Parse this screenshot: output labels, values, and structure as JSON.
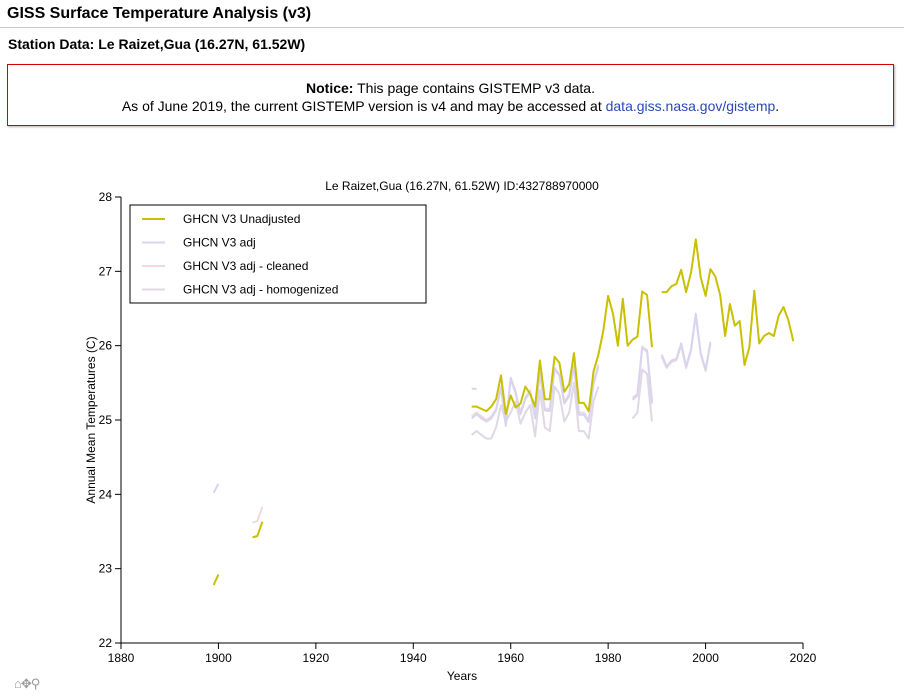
{
  "page": {
    "title": "GISS Surface Temperature Analysis (v3)",
    "station_title": "Station Data: Le Raizet,Gua (16.27N, 61.52W)"
  },
  "notice": {
    "label": "Notice:",
    "line1": " This page contains GISTEMP v3 data.",
    "line2": "As of June 2019, the current GISTEMP version is v4 and may be accessed at ",
    "link_text": "data.giss.nasa.gov/gistemp",
    "line2_end": "."
  },
  "toolbar": {
    "home_icon": "home-icon",
    "pan_icon": "pan-icon",
    "zoom_icon": "zoom-icon"
  },
  "chart_data": {
    "type": "line",
    "title": "Le Raizet,Gua (16.27N, 61.52W) ID:432788970000",
    "xlabel": "Years",
    "ylabel": "Annual Mean Temperatures (C)",
    "xlim": [
      1880,
      2020
    ],
    "ylim": [
      22,
      28
    ],
    "xticks": [
      1880,
      1900,
      1920,
      1940,
      1960,
      1980,
      2000,
      2020
    ],
    "yticks": [
      22,
      23,
      24,
      25,
      26,
      27,
      28
    ],
    "grid": false,
    "legend_position": "top-left",
    "series": [
      {
        "name": "GHCN V3 Unadjusted",
        "color": "#c8c000",
        "segments": [
          [
            [
              1899,
              22.78
            ],
            [
              1900,
              22.92
            ]
          ],
          [
            [
              1907,
              23.42
            ],
            [
              1908,
              23.44
            ],
            [
              1909,
              23.63
            ]
          ],
          [
            [
              1952,
              25.18
            ],
            [
              1953,
              25.18
            ],
            [
              1954,
              25.15
            ],
            [
              1955,
              25.12
            ],
            [
              1956,
              25.18
            ],
            [
              1957,
              25.28
            ],
            [
              1958,
              25.6
            ],
            [
              1959,
              25.08
            ],
            [
              1960,
              25.33
            ],
            [
              1961,
              25.17
            ],
            [
              1962,
              25.22
            ],
            [
              1963,
              25.45
            ],
            [
              1964,
              25.35
            ],
            [
              1965,
              25.18
            ],
            [
              1966,
              25.8
            ],
            [
              1967,
              25.28
            ],
            [
              1968,
              25.28
            ],
            [
              1969,
              25.85
            ],
            [
              1970,
              25.77
            ],
            [
              1971,
              25.38
            ],
            [
              1972,
              25.48
            ],
            [
              1973,
              25.9
            ],
            [
              1974,
              25.23
            ],
            [
              1975,
              25.23
            ],
            [
              1976,
              25.12
            ],
            [
              1977,
              25.65
            ],
            [
              1978,
              25.88
            ],
            [
              1979,
              26.2
            ],
            [
              1980,
              26.67
            ],
            [
              1981,
              26.43
            ],
            [
              1982,
              26.0
            ],
            [
              1983,
              26.63
            ],
            [
              1984,
              26.0
            ],
            [
              1985,
              26.08
            ],
            [
              1986,
              26.12
            ],
            [
              1987,
              26.73
            ],
            [
              1988,
              26.68
            ],
            [
              1989,
              25.98
            ]
          ],
          [
            [
              1991,
              26.72
            ],
            [
              1992,
              26.72
            ],
            [
              1993,
              26.8
            ],
            [
              1994,
              26.83
            ],
            [
              1995,
              27.02
            ],
            [
              1996,
              26.72
            ],
            [
              1997,
              26.98
            ],
            [
              1998,
              27.43
            ],
            [
              1999,
              26.92
            ],
            [
              2000,
              26.67
            ],
            [
              2001,
              27.03
            ],
            [
              2002,
              26.93
            ],
            [
              2003,
              26.68
            ],
            [
              2004,
              26.13
            ],
            [
              2005,
              26.56
            ],
            [
              2006,
              26.27
            ],
            [
              2007,
              26.33
            ],
            [
              2008,
              25.74
            ],
            [
              2009,
              25.98
            ],
            [
              2010,
              26.74
            ],
            [
              2011,
              26.03
            ],
            [
              2012,
              26.13
            ],
            [
              2013,
              26.17
            ],
            [
              2014,
              26.13
            ],
            [
              2015,
              26.4
            ],
            [
              2016,
              26.52
            ],
            [
              2017,
              26.34
            ],
            [
              2018,
              26.06
            ]
          ]
        ]
      },
      {
        "name": "GHCN V3 adj",
        "color": "#d8d4f0",
        "segments": [
          [
            [
              1899,
              24.02
            ],
            [
              1900,
              24.14
            ]
          ],
          [
            [
              1952,
              25.42
            ],
            [
              1953,
              25.42
            ]
          ],
          [
            [
              1952,
              25.02
            ],
            [
              1953,
              25.08
            ],
            [
              1954,
              25.02
            ],
            [
              1955,
              24.98
            ],
            [
              1956,
              25.02
            ],
            [
              1957,
              25.13
            ],
            [
              1958,
              25.43
            ],
            [
              1959,
              24.92
            ],
            [
              1960,
              25.57
            ],
            [
              1961,
              25.38
            ],
            [
              1962,
              25.08
            ],
            [
              1963,
              25.28
            ],
            [
              1964,
              25.38
            ],
            [
              1965,
              25.02
            ],
            [
              1966,
              25.63
            ],
            [
              1967,
              25.13
            ],
            [
              1968,
              25.12
            ],
            [
              1969,
              25.68
            ],
            [
              1970,
              25.6
            ],
            [
              1971,
              25.22
            ],
            [
              1972,
              25.32
            ],
            [
              1973,
              25.73
            ],
            [
              1974,
              25.07
            ],
            [
              1975,
              25.07
            ],
            [
              1976,
              24.97
            ],
            [
              1977,
              25.48
            ],
            [
              1978,
              25.72
            ]
          ],
          [
            [
              1985,
              25.27
            ],
            [
              1986,
              25.33
            ],
            [
              1987,
              25.97
            ],
            [
              1988,
              25.92
            ],
            [
              1989,
              25.22
            ]
          ],
          [
            [
              1991,
              25.88
            ],
            [
              1992,
              25.72
            ],
            [
              1993,
              25.8
            ],
            [
              1994,
              25.82
            ],
            [
              1995,
              26.03
            ],
            [
              1996,
              25.72
            ],
            [
              1997,
              25.95
            ],
            [
              1998,
              26.43
            ],
            [
              1999,
              25.9
            ],
            [
              2000,
              25.68
            ],
            [
              2001,
              26.05
            ]
          ]
        ]
      },
      {
        "name": "GHCN V3 adj - cleaned",
        "color": "#f0d8e0",
        "segments": [
          [
            [
              1907,
              23.62
            ],
            [
              1908,
              23.64
            ],
            [
              1909,
              23.83
            ]
          ],
          [
            [
              1952,
              25.05
            ],
            [
              1953,
              25.1
            ],
            [
              1954,
              25.05
            ],
            [
              1955,
              25.0
            ],
            [
              1956,
              25.05
            ],
            [
              1957,
              25.15
            ],
            [
              1958,
              25.45
            ],
            [
              1959,
              24.95
            ],
            [
              1960,
              25.55
            ],
            [
              1961,
              25.35
            ],
            [
              1962,
              25.1
            ],
            [
              1963,
              25.3
            ],
            [
              1964,
              25.4
            ],
            [
              1965,
              25.05
            ],
            [
              1966,
              25.65
            ],
            [
              1967,
              25.15
            ],
            [
              1968,
              25.15
            ],
            [
              1969,
              25.7
            ],
            [
              1970,
              25.62
            ],
            [
              1971,
              25.25
            ],
            [
              1972,
              25.35
            ],
            [
              1973,
              25.75
            ],
            [
              1974,
              25.1
            ],
            [
              1975,
              25.1
            ],
            [
              1976,
              25.0
            ],
            [
              1977,
              25.5
            ],
            [
              1978,
              25.75
            ]
          ],
          [
            [
              1985,
              25.3
            ],
            [
              1986,
              25.35
            ],
            [
              1987,
              25.99
            ],
            [
              1988,
              25.94
            ],
            [
              1989,
              25.25
            ]
          ],
          [
            [
              1991,
              25.85
            ],
            [
              1992,
              25.7
            ],
            [
              1993,
              25.78
            ],
            [
              1994,
              25.8
            ],
            [
              1995,
              26.0
            ],
            [
              1996,
              25.7
            ],
            [
              1997,
              25.93
            ],
            [
              1998,
              26.4
            ],
            [
              1999,
              25.88
            ],
            [
              2000,
              25.66
            ],
            [
              2001,
              26.02
            ]
          ]
        ]
      },
      {
        "name": "GHCN V3 adj - homogenized",
        "color": "#e0d8e4",
        "segments": [
          [
            [
              1952,
              24.8
            ],
            [
              1953,
              24.85
            ],
            [
              1954,
              24.8
            ],
            [
              1955,
              24.75
            ],
            [
              1956,
              24.75
            ],
            [
              1957,
              24.9
            ],
            [
              1958,
              25.2
            ],
            [
              1959,
              24.98
            ],
            [
              1960,
              25.1
            ],
            [
              1961,
              25.25
            ],
            [
              1962,
              24.95
            ],
            [
              1963,
              25.1
            ],
            [
              1964,
              25.2
            ],
            [
              1965,
              24.78
            ],
            [
              1966,
              25.4
            ],
            [
              1967,
              24.9
            ],
            [
              1968,
              24.85
            ],
            [
              1969,
              25.45
            ],
            [
              1970,
              25.35
            ],
            [
              1971,
              24.98
            ],
            [
              1972,
              25.1
            ],
            [
              1973,
              25.5
            ],
            [
              1974,
              24.85
            ],
            [
              1975,
              24.85
            ],
            [
              1976,
              24.75
            ],
            [
              1977,
              25.25
            ],
            [
              1978,
              25.45
            ]
          ],
          [
            [
              1985,
              25.02
            ],
            [
              1986,
              25.1
            ],
            [
              1987,
              25.68
            ],
            [
              1988,
              25.62
            ],
            [
              1989,
              24.98
            ]
          ]
        ]
      }
    ]
  }
}
